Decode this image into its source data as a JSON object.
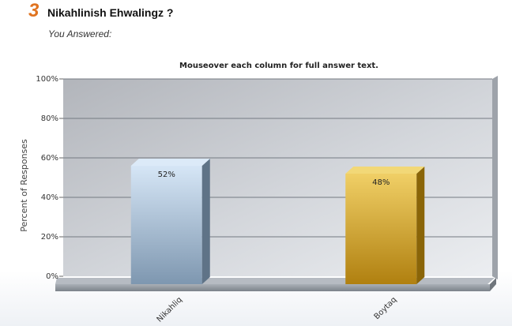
{
  "question": {
    "number": "3",
    "title": "Nikahlinish Ehwalingz ?",
    "subtitle": "You Answered:"
  },
  "colors": {
    "accent": "#e0731f",
    "bar_blue": "#a9c1d9",
    "bar_gold": "#d6a62c",
    "plot_bg": "#c9ccd1"
  },
  "chart_data": {
    "type": "bar",
    "title": "Mouseover each column for full answer text.",
    "ylabel": "Percent of Responses",
    "xlabel": "",
    "categories": [
      "Nikahliq",
      "Boytaq"
    ],
    "values": [
      52,
      48
    ],
    "data_labels": [
      "52%",
      "48%"
    ],
    "ylim": [
      0,
      100
    ],
    "yticks": [
      "0%",
      "20%",
      "40%",
      "60%",
      "80%",
      "100%"
    ],
    "grid": true,
    "legend": "none",
    "style": "3d"
  }
}
